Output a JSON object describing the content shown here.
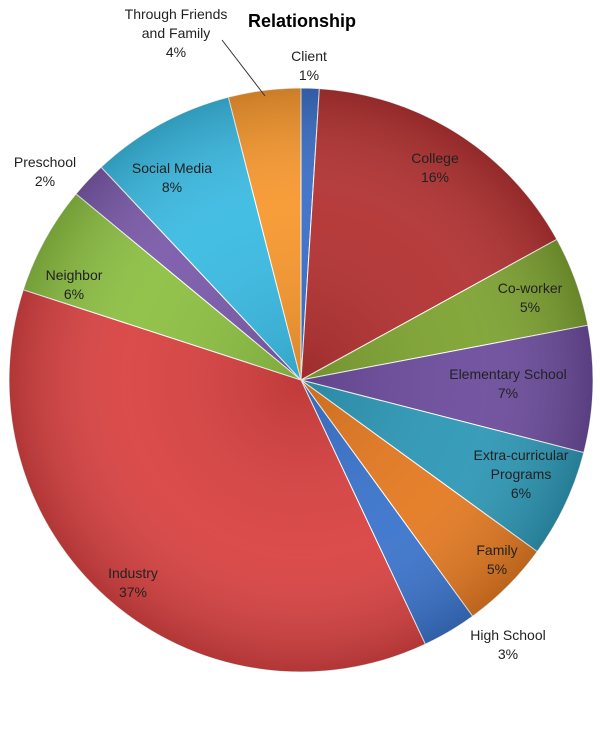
{
  "chart_data": {
    "type": "pie",
    "title": "Relationship",
    "start": "top",
    "direction": "clockwise",
    "legend": "none",
    "slices": [
      {
        "label": "Client",
        "value": 1,
        "display": "1%",
        "color": "#3b6fc6"
      },
      {
        "label": "College",
        "value": 16,
        "display": "16%",
        "color": "#b33232"
      },
      {
        "label": "Co-worker",
        "value": 5,
        "display": "5%",
        "color": "#7ea332"
      },
      {
        "label": "Elementary School",
        "value": 7,
        "display": "7%",
        "color": "#6c4c9c"
      },
      {
        "label": "Extra-curricular Programs",
        "value": 6,
        "display": "6%",
        "color": "#2e98b6"
      },
      {
        "label": "Family",
        "value": 5,
        "display": "5%",
        "color": "#e47a22"
      },
      {
        "label": "High School",
        "value": 3,
        "display": "3%",
        "color": "#3b74cc"
      },
      {
        "label": "Industry",
        "value": 37,
        "display": "37%",
        "color": "#d94242"
      },
      {
        "label": "Neighbor",
        "value": 6,
        "display": "6%",
        "color": "#8dc043"
      },
      {
        "label": "Preschool",
        "value": 2,
        "display": "2%",
        "color": "#7b5aaa"
      },
      {
        "label": "Social Media",
        "value": 8,
        "display": "8%",
        "color": "#3bbbe3"
      },
      {
        "label": "Through Friends and Family",
        "value": 4,
        "display": "4%",
        "color": "#f7982f"
      }
    ]
  }
}
